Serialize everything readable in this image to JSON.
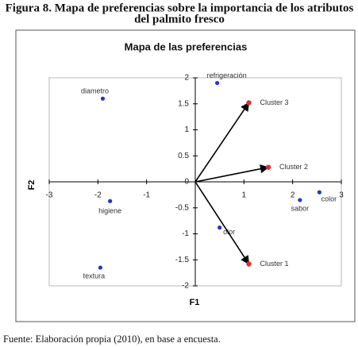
{
  "figure_title": [
    "Figura 8.  Mapa de preferencias sobre la importancia de los atributos",
    "del palmito fresco"
  ],
  "source": "Fuente: Elaboración propia (2010), en base a encuesta.",
  "chart_data": {
    "type": "scatter",
    "title": "Mapa de las preferencias",
    "x_label": "F1",
    "y_label": "F2",
    "xlim": [
      -3,
      3
    ],
    "ylim": [
      -2,
      2
    ],
    "xticks": [
      -3,
      -2,
      -1,
      1,
      2,
      3
    ],
    "yticks": [
      -2,
      -1.5,
      -1,
      -0.5,
      0,
      0.5,
      1,
      1.5,
      2
    ],
    "series": [
      {
        "color": "#2436c4",
        "labels": [
          "diametro",
          "refrigeración",
          "higiene",
          "textura",
          "olor",
          "sabor",
          "color"
        ],
        "x": [
          -1.9,
          0.45,
          -1.75,
          -1.95,
          0.5,
          2.15,
          2.55
        ],
        "values": [
          1.6,
          1.9,
          -0.37,
          -1.65,
          -0.88,
          -0.35,
          -0.2
        ],
        "arrows": false
      },
      {
        "color": "#e0302a",
        "labels": [
          "Cluster 3",
          "Cluster 2",
          "Cluster 1"
        ],
        "x": [
          1.1,
          1.5,
          1.1
        ],
        "values": [
          1.52,
          0.28,
          -1.58
        ],
        "arrows": true
      }
    ]
  }
}
